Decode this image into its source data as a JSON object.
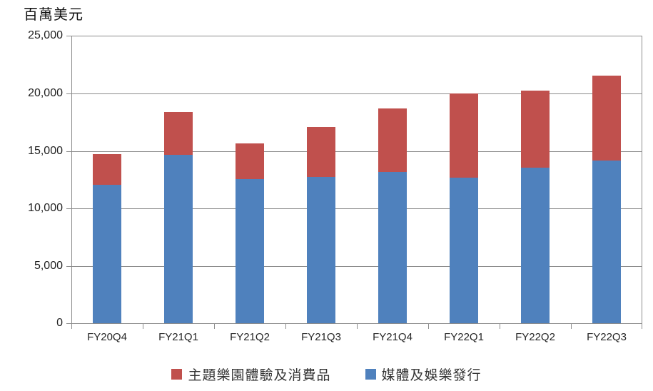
{
  "title": "百萬美元",
  "chart_data": {
    "type": "bar",
    "stacked": true,
    "title": "百萬美元",
    "ylabel": "百萬美元",
    "xlabel": "",
    "categories": [
      "FY20Q4",
      "FY21Q1",
      "FY21Q2",
      "FY21Q3",
      "FY21Q4",
      "FY22Q1",
      "FY22Q2",
      "FY22Q3"
    ],
    "series": [
      {
        "name": "媒體及娛樂發行",
        "color": "#4F81BD",
        "values": [
          12000,
          14600,
          12500,
          12700,
          13100,
          12600,
          13500,
          14100
        ]
      },
      {
        "name": "主題樂園體驗及消費品",
        "color": "#C0504D",
        "values": [
          2700,
          3700,
          3100,
          4300,
          5500,
          7300,
          6650,
          7400
        ]
      }
    ],
    "totals": [
      14700,
      18300,
      15600,
      17000,
      18600,
      19900,
      20150,
      21500
    ],
    "ylim": [
      0,
      25000
    ],
    "ytick_values": [
      0,
      5000,
      10000,
      15000,
      20000,
      25000
    ],
    "ytick_labels": [
      "0",
      "5,000",
      "10,000",
      "15,000",
      "20,000",
      "25,000"
    ],
    "grid": true,
    "legend_position": "bottom"
  },
  "legend": {
    "items": [
      {
        "label": "主題樂園體驗及消費品",
        "color": "#C0504D"
      },
      {
        "label": "媒體及娛樂發行",
        "color": "#4F81BD"
      }
    ]
  },
  "colors": {
    "bar_blue": "#4F81BD",
    "bar_red": "#C0504D",
    "gridline": "#8C8C8C",
    "axis": "#8C8C8C",
    "text": "#1F1F1F"
  }
}
